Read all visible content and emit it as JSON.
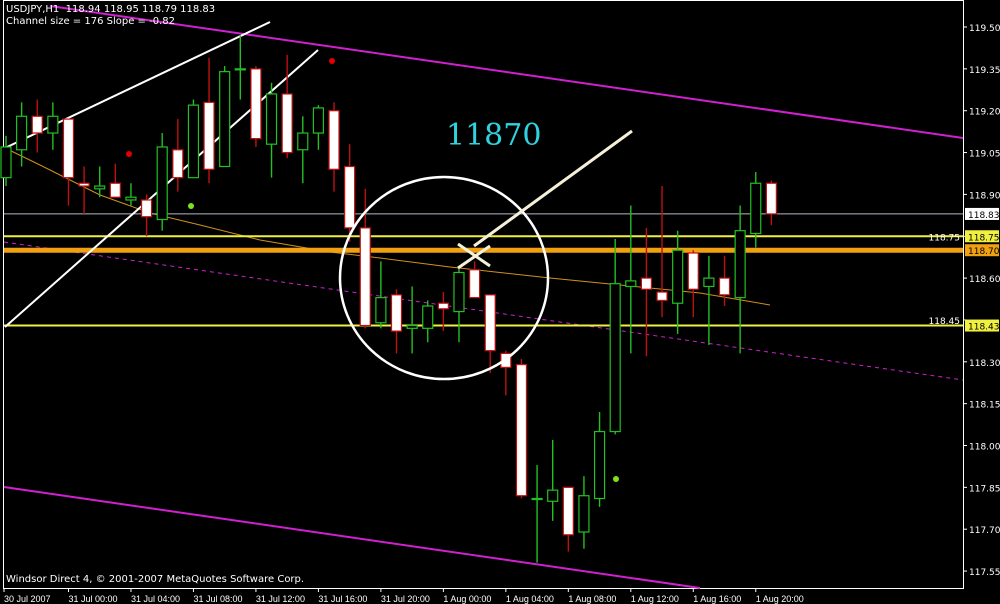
{
  "header": {
    "symbol": "USDJPY,H1",
    "ohlc": "118.94 118.95 118.79 118.83",
    "indicator": "Channel size = 176 Slope = -0.82"
  },
  "annotation_text": "11870",
  "footer": "Windsor Direct 4, © 2001-2007 MetaQuotes Software Corp.",
  "colors": {
    "background": "#000000",
    "bull": "#22c022",
    "bear_outline": "#c01010",
    "bear_fill": "#ffffff",
    "channel": "#d020d0",
    "level_yellow": "#f0f040",
    "level_orange": "#f0a010",
    "ma": "#d09020",
    "annotation": "#2fd3e0"
  },
  "chart_data": {
    "type": "candlestick",
    "symbol": "USDJPY",
    "timeframe": "H1",
    "ylim": [
      117.5,
      119.58
    ],
    "y_ticks": [
      "119.50",
      "119.35",
      "119.20",
      "119.05",
      "118.90",
      "118.75",
      "118.60",
      "118.45",
      "118.30",
      "118.15",
      "118.00",
      "117.85",
      "117.70",
      "117.55"
    ],
    "x_ticks": [
      "30 Jul 2007",
      "31 Jul 00:00",
      "31 Jul 04:00",
      "31 Jul 08:00",
      "31 Jul 12:00",
      "31 Jul 16:00",
      "31 Jul 20:00",
      "1 Aug 00:00",
      "1 Aug 04:00",
      "1 Aug 08:00",
      "1 Aug 12:00",
      "1 Aug 16:00",
      "1 Aug 20:00"
    ],
    "price_labels": [
      {
        "value": "118.83",
        "style": "bid"
      },
      {
        "value": "118.75",
        "style": "yellow"
      },
      {
        "value": "118.70",
        "style": "orange"
      },
      {
        "value": "118.43",
        "style": "yellow"
      }
    ],
    "levels": [
      {
        "price": 118.83,
        "color": "#b0b8c8",
        "width": 1
      },
      {
        "price": 118.75,
        "color": "#f0f040",
        "width": 2
      },
      {
        "price": 118.7,
        "color": "#f0a010",
        "width": 5
      },
      {
        "price": 118.43,
        "color": "#f0f040",
        "width": 2
      }
    ],
    "candles": [
      [
        "30 Jul 20:00",
        118.96,
        119.11,
        118.93,
        119.07
      ],
      [
        "30 Jul 21:00",
        119.06,
        119.23,
        119.0,
        119.18
      ],
      [
        "30 Jul 22:00",
        119.18,
        119.24,
        119.05,
        119.12
      ],
      [
        "30 Jul 23:00",
        119.12,
        119.23,
        119.06,
        119.18
      ],
      [
        "31 Jul 00:00",
        119.17,
        119.17,
        118.86,
        118.96
      ],
      [
        "31 Jul 01:00",
        118.94,
        119.0,
        118.83,
        118.93
      ],
      [
        "31 Jul 02:00",
        118.92,
        119.0,
        118.89,
        118.93
      ],
      [
        "31 Jul 03:00",
        118.94,
        119.01,
        118.89,
        118.89
      ],
      [
        "31 Jul 04:00",
        118.88,
        118.94,
        118.86,
        118.89
      ],
      [
        "31 Jul 05:00",
        118.88,
        118.9,
        118.75,
        118.82
      ],
      [
        "31 Jul 06:00",
        118.81,
        119.12,
        118.77,
        119.07
      ],
      [
        "31 Jul 07:00",
        119.06,
        119.17,
        118.91,
        118.96
      ],
      [
        "31 Jul 08:00",
        118.96,
        119.24,
        118.96,
        119.22
      ],
      [
        "31 Jul 09:00",
        119.23,
        119.39,
        118.94,
        118.99
      ],
      [
        "31 Jul 10:00",
        119.0,
        119.36,
        119.0,
        119.34
      ],
      [
        "31 Jul 11:00",
        119.35,
        119.47,
        119.24,
        119.35
      ],
      [
        "31 Jul 12:00",
        119.35,
        119.36,
        119.07,
        119.1
      ],
      [
        "31 Jul 13:00",
        119.08,
        119.3,
        118.96,
        119.26
      ],
      [
        "31 Jul 14:00",
        119.26,
        119.4,
        119.03,
        119.05
      ],
      [
        "31 Jul 15:00",
        119.06,
        119.18,
        118.94,
        119.12
      ],
      [
        "31 Jul 16:00",
        119.12,
        119.22,
        119.06,
        119.21
      ],
      [
        "31 Jul 17:00",
        119.2,
        119.23,
        118.91,
        118.99
      ],
      [
        "31 Jul 18:00",
        119.0,
        119.08,
        118.73,
        118.78
      ],
      [
        "31 Jul 19:00",
        118.78,
        118.92,
        118.42,
        118.43
      ],
      [
        "31 Jul 20:00",
        118.44,
        118.66,
        118.42,
        118.53
      ],
      [
        "31 Jul 21:00",
        118.54,
        118.56,
        118.33,
        118.41
      ],
      [
        "31 Jul 22:00",
        118.42,
        118.57,
        118.33,
        118.43
      ],
      [
        "31 Jul 23:00",
        118.42,
        118.52,
        118.37,
        118.5
      ],
      [
        "1 Aug 00:00",
        118.51,
        118.55,
        118.41,
        118.49
      ],
      [
        "1 Aug 01:00",
        118.48,
        118.64,
        118.37,
        118.62
      ],
      [
        "1 Aug 02:00",
        118.63,
        118.66,
        118.53,
        118.53
      ],
      [
        "1 Aug 03:00",
        118.54,
        118.54,
        118.26,
        118.34
      ],
      [
        "1 Aug 04:00",
        118.33,
        118.34,
        118.18,
        118.28
      ],
      [
        "1 Aug 05:00",
        118.29,
        118.31,
        117.81,
        117.82
      ],
      [
        "1 Aug 06:00",
        117.81,
        117.93,
        117.58,
        117.81
      ],
      [
        "1 Aug 07:00",
        117.8,
        118.02,
        117.73,
        117.84
      ],
      [
        "1 Aug 08:00",
        117.85,
        117.85,
        117.62,
        117.68
      ],
      [
        "1 Aug 09:00",
        117.69,
        117.89,
        117.63,
        117.82
      ],
      [
        "1 Aug 10:00",
        117.81,
        118.12,
        117.78,
        118.05
      ],
      [
        "1 Aug 11:00",
        118.05,
        118.74,
        118.04,
        118.58
      ],
      [
        "1 Aug 12:00",
        118.57,
        118.86,
        118.33,
        118.59
      ],
      [
        "1 Aug 13:00",
        118.6,
        118.78,
        118.32,
        118.56
      ],
      [
        "1 Aug 14:00",
        118.55,
        118.93,
        118.46,
        118.52
      ],
      [
        "1 Aug 15:00",
        118.51,
        118.77,
        118.4,
        118.7
      ],
      [
        "1 Aug 16:00",
        118.69,
        118.7,
        118.46,
        118.56
      ],
      [
        "1 Aug 17:00",
        118.57,
        118.68,
        118.36,
        118.6
      ],
      [
        "1 Aug 18:00",
        118.6,
        118.68,
        118.5,
        118.54
      ],
      [
        "1 Aug 19:00",
        118.53,
        118.86,
        118.33,
        118.77
      ],
      [
        "1 Aug 20:00",
        118.76,
        118.98,
        118.71,
        118.94
      ],
      [
        "1 Aug 21:00",
        118.94,
        118.95,
        118.79,
        118.83
      ]
    ]
  }
}
